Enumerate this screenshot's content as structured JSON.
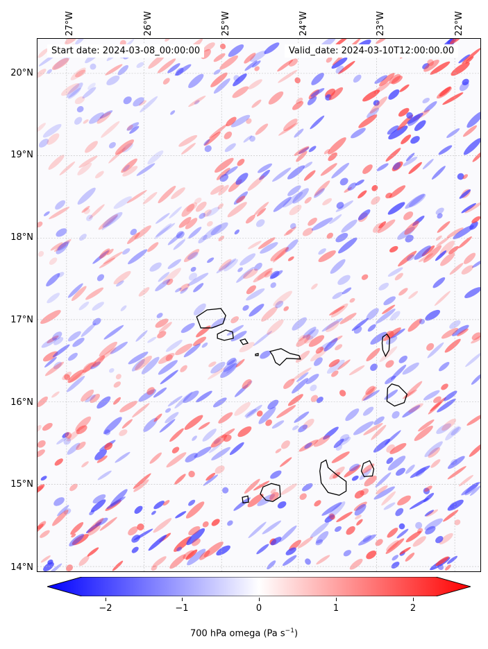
{
  "map": {
    "start_date": "Start date: 2024-03-08_00:00:00",
    "valid_date": "Valid_date: 2024-03-10T12:00:00.00",
    "lon_labels": [
      "27°W",
      "26°W",
      "25°W",
      "24°W",
      "23°W",
      "22°W"
    ],
    "lat_labels": [
      "20°N",
      "19°N",
      "18°N",
      "17°N",
      "16°N",
      "15°N",
      "14°N"
    ],
    "coastline_color": "#000000",
    "gridlines": "dotted gray",
    "field_colormap": "bwr"
  },
  "colorbar": {
    "ticks": [
      "−2",
      "−1",
      "0",
      "1",
      "2"
    ],
    "title": "700 hPa omega (Pa s",
    "title_superscript": "−1",
    "title_end": ")",
    "colors": {
      "min": "#0000ff",
      "mid": "#ffffff",
      "max": "#ff0000"
    }
  }
}
